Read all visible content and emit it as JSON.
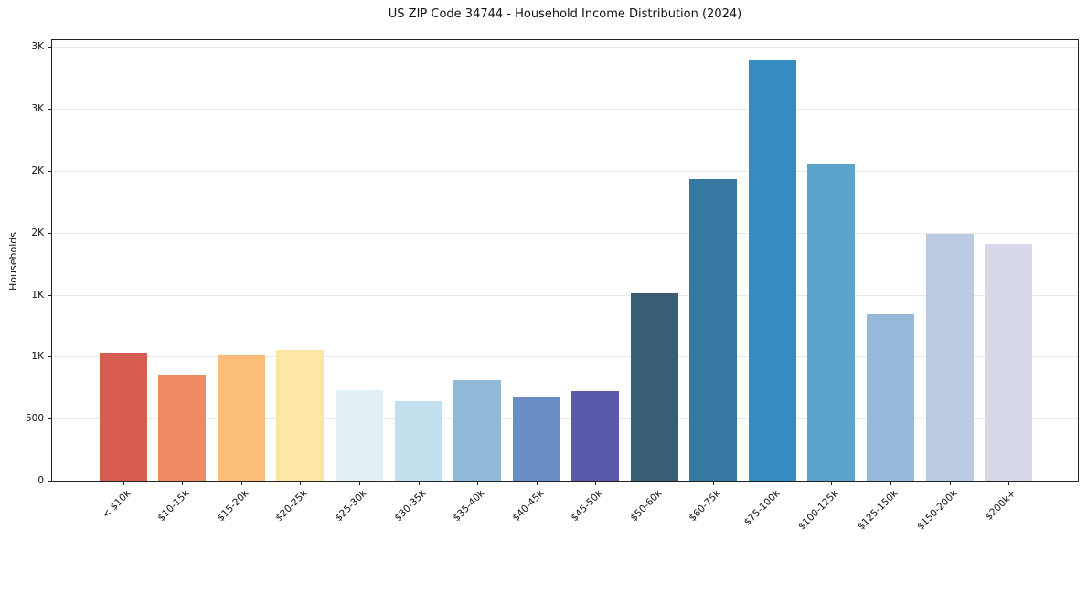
{
  "chart": {
    "title": "US ZIP Code 34744 - Household Income Distribution (2024)",
    "ylabel": "Households"
  },
  "chart_data": {
    "type": "bar",
    "title": "US ZIP Code 34744 - Household Income Distribution (2024)",
    "xlabel": "",
    "ylabel": "Households",
    "categories": [
      "< $10k",
      "$10-15k",
      "$15-20k",
      "$20-25k",
      "$25-30k",
      "$30-35k",
      "$35-40k",
      "$40-45k",
      "$45-50k",
      "$50-60k",
      "$60-75k",
      "$75-100k",
      "$100-125k",
      "$125-150k",
      "$150-200k",
      "$200k+"
    ],
    "values": [
      1030,
      855,
      1015,
      1055,
      730,
      645,
      810,
      675,
      725,
      1510,
      2430,
      3390,
      2560,
      1340,
      1990,
      1910
    ],
    "bar_colors": [
      "#d65c52",
      "#ef8a62",
      "#fbbd79",
      "#fce5a5",
      "#e3f0f6",
      "#c1dfec",
      "#90b9d8",
      "#6a8ec3",
      "#5b59a9",
      "#395e74",
      "#3579a1",
      "#358cc1",
      "#5ba4c9",
      "#96b9da",
      "#b9cae1",
      "#d6d8e7"
    ],
    "y_ticks": {
      "values": [
        0,
        500,
        1000,
        1500,
        2000,
        2500,
        3000,
        3500
      ],
      "labels": [
        "0",
        "500",
        "1K",
        "1K",
        "2K",
        "2K",
        "3K",
        "3K"
      ]
    },
    "ylim": [
      0,
      3565
    ],
    "grid": "horizontal-light",
    "legend": "none",
    "x_tick_rotation": 45
  }
}
